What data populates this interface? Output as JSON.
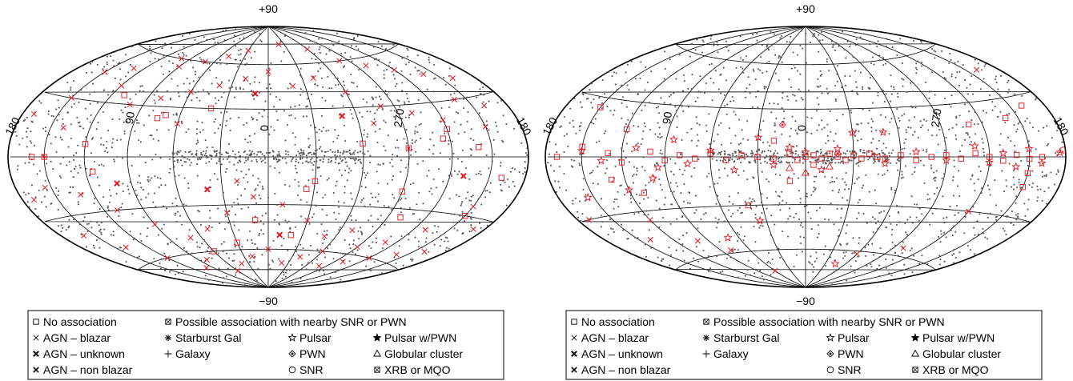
{
  "chart_data": [
    {
      "type": "scatter",
      "projection": "hammer-aitoff",
      "panel": "left",
      "top_label": "+90",
      "bottom_label": "−90",
      "lon_labels": [
        "180",
        "90",
        "0",
        "270",
        "180"
      ],
      "grid": true,
      "dot_color": "#555555",
      "marker_color": "#e8141c",
      "legend": {
        "rows": [
          [
            "No association",
            "Possible association with nearby SNR or PWN"
          ],
          [
            "AGN – blazar",
            "Starburst Gal",
            "Pulsar",
            "Pulsar w/PWN"
          ],
          [
            "AGN – unknown",
            "Galaxy",
            "PWN",
            "Globular cluster"
          ],
          [
            "AGN – non blazar",
            "SNR",
            "XRB or MQO"
          ]
        ]
      },
      "series": [
        {
          "name": "No association",
          "points": [
            [
              160,
              0
            ],
            [
              115,
              -8
            ],
            [
              120,
              7
            ],
            [
              70,
              25
            ],
            [
              75,
              23
            ],
            [
              -30,
              -15
            ],
            [
              -25,
              -20
            ],
            [
              -60,
              8
            ],
            [
              -120,
              15
            ],
            [
              -140,
              5
            ],
            [
              -160,
              -10
            ],
            [
              -150,
              -30
            ],
            [
              -100,
              -35
            ],
            [
              10,
              -40
            ],
            [
              30,
              -55
            ],
            [
              -20,
              -50
            ],
            [
              60,
              -60
            ],
            [
              -90,
              -20
            ],
            [
              -115,
              10
            ],
            [
              40,
              30
            ],
            [
              110,
              35
            ]
          ]
        },
        {
          "name": "AGN – blazar",
          "points": [
            [
              100,
              60
            ],
            [
              90,
              55
            ],
            [
              70,
              60
            ],
            [
              50,
              65
            ],
            [
              30,
              70
            ],
            [
              -20,
              75
            ],
            [
              -60,
              70
            ],
            [
              -80,
              60
            ],
            [
              -100,
              55
            ],
            [
              -120,
              50
            ],
            [
              -140,
              45
            ],
            [
              -160,
              40
            ],
            [
              150,
              45
            ],
            [
              130,
              50
            ],
            [
              120,
              40
            ],
            [
              100,
              30
            ],
            [
              80,
              35
            ],
            [
              60,
              40
            ],
            [
              40,
              45
            ],
            [
              20,
              50
            ],
            [
              0,
              55
            ],
            [
              -20,
              45
            ],
            [
              -40,
              50
            ],
            [
              -60,
              40
            ],
            [
              -80,
              30
            ],
            [
              -100,
              25
            ],
            [
              -120,
              20
            ],
            [
              -140,
              30
            ],
            [
              -160,
              25
            ],
            [
              170,
              20
            ],
            [
              150,
              30
            ],
            [
              140,
              15
            ],
            [
              130,
              -20
            ],
            [
              110,
              -30
            ],
            [
              90,
              -40
            ],
            [
              70,
              -50
            ],
            [
              50,
              -45
            ],
            [
              30,
              -35
            ],
            [
              10,
              -25
            ],
            [
              -10,
              -30
            ],
            [
              -30,
              -40
            ],
            [
              -50,
              -50
            ],
            [
              -70,
              -45
            ],
            [
              -90,
              -55
            ],
            [
              -110,
              -50
            ],
            [
              -130,
              -40
            ],
            [
              -150,
              -25
            ],
            [
              -170,
              -35
            ],
            [
              160,
              -40
            ],
            [
              140,
              -50
            ],
            [
              120,
              -60
            ],
            [
              100,
              -70
            ],
            [
              80,
              -65
            ],
            [
              60,
              -75
            ],
            [
              40,
              -70
            ],
            [
              20,
              -65
            ],
            [
              0,
              -60
            ],
            [
              -20,
              -70
            ],
            [
              -40,
              -65
            ],
            [
              -60,
              -60
            ],
            [
              -80,
              -70
            ],
            [
              -100,
              -65
            ],
            [
              -120,
              -60
            ],
            [
              -140,
              -55
            ],
            [
              -160,
              -50
            ],
            [
              170,
              -20
            ],
            [
              155,
              -15
            ],
            [
              60,
              20
            ],
            [
              -70,
              20
            ],
            [
              -150,
              15
            ],
            [
              20,
              -15
            ]
          ]
        },
        {
          "name": "AGN – unknown",
          "points": [
            [
              40,
              -20
            ],
            [
              -50,
              25
            ],
            [
              100,
              -15
            ],
            [
              -130,
              -10
            ],
            [
              10,
              40
            ],
            [
              -10,
              -50
            ]
          ]
        },
        {
          "name": "Possible association with nearby SNR or PWN",
          "points": [
            [
              150,
              0
            ],
            [
              -90,
              5
            ]
          ]
        }
      ]
    },
    {
      "type": "scatter",
      "projection": "hammer-aitoff",
      "panel": "right",
      "top_label": "+90",
      "bottom_label": "−90",
      "lon_labels": [
        "180",
        "90",
        "0",
        "270",
        "180"
      ],
      "grid": true,
      "dot_color": "#555555",
      "marker_color": "#e8141c",
      "legend": {
        "rows": [
          [
            "No association",
            "Possible association with nearby SNR or PWN"
          ],
          [
            "AGN – blazar",
            "Starburst Gal",
            "Pulsar",
            "Pulsar w/PWN"
          ],
          [
            "AGN – unknown",
            "Galaxy",
            "PWN",
            "Globular cluster"
          ],
          [
            "AGN – non blazar",
            "SNR",
            "XRB or MQO"
          ]
        ]
      },
      "series": [
        {
          "name": "No association",
          "points": [
            [
              170,
              0
            ],
            [
              150,
              5
            ],
            [
              130,
              2
            ],
            [
              120,
              -3
            ],
            [
              100,
              3
            ],
            [
              90,
              -2
            ],
            [
              80,
              1
            ],
            [
              70,
              -1
            ],
            [
              60,
              2
            ],
            [
              50,
              -2
            ],
            [
              40,
              1
            ],
            [
              30,
              0
            ],
            [
              20,
              -1
            ],
            [
              10,
              2
            ],
            [
              5,
              -2
            ],
            [
              0,
              0
            ],
            [
              -5,
              1
            ],
            [
              -10,
              -1
            ],
            [
              -15,
              2
            ],
            [
              -20,
              0
            ],
            [
              -25,
              -2
            ],
            [
              -30,
              1
            ],
            [
              -35,
              -1
            ],
            [
              -40,
              2
            ],
            [
              -45,
              0
            ],
            [
              -50,
              -1
            ],
            [
              -60,
              1
            ],
            [
              -70,
              -2
            ],
            [
              -80,
              0
            ],
            [
              -90,
              1
            ],
            [
              -100,
              -1
            ],
            [
              -110,
              2
            ],
            [
              -120,
              0
            ],
            [
              -130,
              -2
            ],
            [
              -140,
              1
            ],
            [
              -150,
              -1
            ],
            [
              -160,
              0
            ],
            [
              150,
              25
            ],
            [
              120,
              15
            ],
            [
              110,
              -20
            ],
            [
              130,
              -12
            ],
            [
              -140,
              20
            ],
            [
              -150,
              -15
            ],
            [
              -160,
              25
            ],
            [
              -110,
              18
            ],
            [
              20,
              10
            ],
            [
              -5,
              -5
            ],
            [
              10,
              -15
            ],
            [
              40,
              -30
            ],
            [
              -150,
              -8
            ]
          ]
        },
        {
          "name": "Pulsar",
          "points": [
            [
              150,
              3
            ],
            [
              135,
              -2
            ],
            [
              110,
              5
            ],
            [
              95,
              -6
            ],
            [
              85,
              10
            ],
            [
              75,
              -4
            ],
            [
              60,
              4
            ],
            [
              45,
              -8
            ],
            [
              30,
              12
            ],
            [
              20,
              -5
            ],
            [
              10,
              6
            ],
            [
              0,
              3
            ],
            [
              -10,
              -8
            ],
            [
              -20,
              5
            ],
            [
              -30,
              15
            ],
            [
              -50,
              -4
            ],
            [
              -70,
              3
            ],
            [
              -90,
              -2
            ],
            [
              -110,
              6
            ],
            [
              -120,
              -3
            ],
            [
              -130,
              2
            ],
            [
              -140,
              -5
            ],
            [
              -150,
              4
            ],
            [
              -160,
              -3
            ],
            [
              -175,
              2
            ],
            [
              120,
              -18
            ],
            [
              35,
              -40
            ],
            [
              -45,
              -70
            ],
            [
              70,
              -50
            ],
            [
              -50,
              15
            ],
            [
              155,
              -20
            ],
            [
              100,
              -12
            ]
          ]
        },
        {
          "name": "AGN – blazar",
          "points": [
            [
              120,
              -35
            ],
            [
              100,
              -50
            ],
            [
              -100,
              -55
            ],
            [
              -60,
              -62
            ],
            [
              60,
              -75
            ],
            [
              -160,
              45
            ],
            [
              170,
              -30
            ],
            [
              140,
              -45
            ],
            [
              -120,
              -30
            ],
            [
              80,
              -58
            ]
          ]
        },
        {
          "name": "Globular cluster",
          "points": [
            [
              0,
              -10
            ],
            [
              -15,
              -6
            ],
            [
              10,
              -7
            ]
          ]
        },
        {
          "name": "SNR",
          "points": [
            [
              -178,
              3
            ]
          ]
        },
        {
          "name": "PWN",
          "points": [
            [
              15,
              20
            ],
            [
              -20,
              2
            ]
          ]
        }
      ]
    }
  ]
}
